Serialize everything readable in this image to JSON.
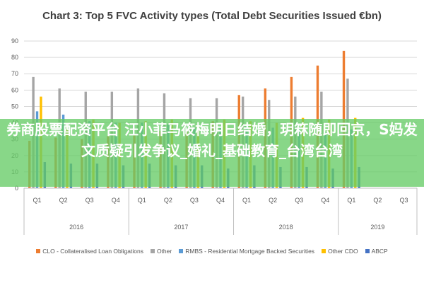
{
  "chart_data": {
    "type": "bar",
    "title": "Chart 3: Top 5 FVC Activity types (Total Debt Securities Issued €bn)",
    "ylim": [
      0,
      90
    ],
    "yticks": [
      0,
      10,
      20,
      30,
      40,
      50,
      60,
      70,
      80,
      90
    ],
    "grid": true,
    "legend_position": "bottom",
    "categories": [
      "Q1",
      "Q2",
      "Q3",
      "Q4",
      "Q1",
      "Q2",
      "Q3",
      "Q4",
      "Q1",
      "Q2",
      "Q3",
      "Q4",
      "Q1",
      "Q2",
      "Q3"
    ],
    "years": [
      {
        "label": "2016",
        "start": 0,
        "count": 4
      },
      {
        "label": "2017",
        "start": 4,
        "count": 4
      },
      {
        "label": "2018",
        "start": 8,
        "count": 4
      },
      {
        "label": "2019",
        "start": 12,
        "count": 3
      }
    ],
    "series": [
      {
        "name": "CLO - Collateralised Loan Obligations",
        "color": "#ED7D31",
        "values": [
          29,
          31,
          30,
          32,
          33,
          35,
          36,
          41,
          57,
          61,
          68,
          75,
          84,
          0,
          0
        ]
      },
      {
        "name": "Other",
        "color": "#A5A5A5",
        "values": [
          68,
          61,
          59,
          59,
          61,
          58,
          55,
          55,
          56,
          54,
          56,
          59,
          67,
          0,
          0
        ]
      },
      {
        "name": "RMBS - Residential Mortgage Backed Securities",
        "color": "#5B9BD5",
        "values": [
          47,
          45,
          41,
          40,
          40,
          39,
          37,
          38,
          38,
          37,
          37,
          34,
          36,
          0,
          0
        ]
      },
      {
        "name": "Other CDO",
        "color": "#FFC000",
        "values": [
          56,
          40,
          42,
          40,
          41,
          42,
          38,
          42,
          41,
          40,
          43,
          42,
          43,
          0,
          0
        ]
      },
      {
        "name": "ABCP",
        "color": "#4472C4",
        "values": [
          16,
          15,
          15,
          14,
          15,
          14,
          14,
          12,
          14,
          13,
          13,
          12,
          13,
          0,
          0
        ]
      }
    ]
  },
  "overlay": {
    "text": "券商股票配资平台 汪小菲马筱梅明日结婚，玥箖随即回京，S妈发文质疑引发争议_婚礼_基础教育_台湾台湾"
  }
}
